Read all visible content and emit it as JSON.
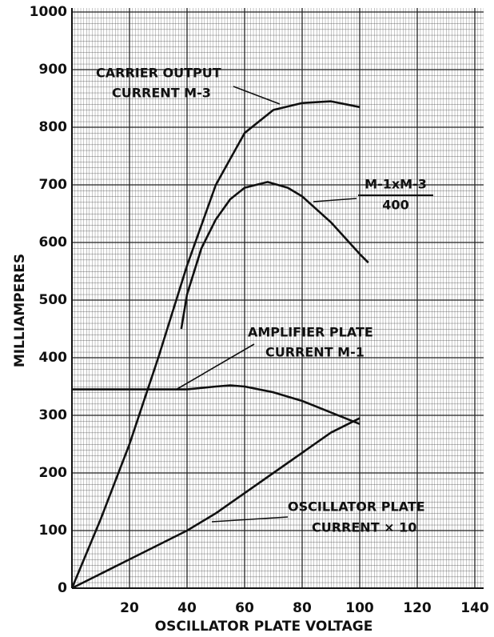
{
  "chart_data": {
    "type": "line",
    "xlabel": "OSCILLATOR PLATE VOLTAGE",
    "ylabel": "MILLIAMPERES",
    "xlim": [
      0,
      140
    ],
    "xticks": [
      20,
      40,
      60,
      80,
      100,
      120,
      140
    ],
    "ylim": [
      0,
      1000
    ],
    "yticks": [
      0,
      100,
      200,
      300,
      400,
      500,
      600,
      700,
      800,
      900,
      1000
    ],
    "grid": true,
    "color": "#111111",
    "series": [
      {
        "label": [
          "CARRIER OUTPUT",
          "CURRENT M-3"
        ],
        "x": [
          0,
          10,
          20,
          30,
          40,
          50,
          60,
          70,
          80,
          90,
          100
        ],
        "values": [
          0,
          120,
          250,
          400,
          560,
          700,
          790,
          830,
          842,
          845,
          835
        ]
      },
      {
        "label": [
          "M-1xM-3",
          "400"
        ],
        "x": [
          38,
          40,
          45,
          50,
          55,
          60,
          68,
          75,
          80,
          90,
          100,
          103
        ],
        "values": [
          450,
          510,
          590,
          640,
          675,
          695,
          705,
          695,
          680,
          635,
          580,
          565
        ]
      },
      {
        "label": [
          "AMPLIFIER PLATE",
          "CURRENT M-1"
        ],
        "x": [
          0,
          20,
          40,
          50,
          55,
          60,
          70,
          80,
          90,
          100
        ],
        "values": [
          345,
          345,
          345,
          350,
          352,
          350,
          340,
          325,
          305,
          285
        ]
      },
      {
        "label": [
          "OSCILLATOR PLATE",
          "CURRENT × 10"
        ],
        "x": [
          0,
          10,
          20,
          30,
          40,
          50,
          60,
          70,
          80,
          90,
          100
        ],
        "values": [
          0,
          25,
          50,
          75,
          100,
          130,
          165,
          200,
          235,
          270,
          295
        ]
      }
    ]
  }
}
